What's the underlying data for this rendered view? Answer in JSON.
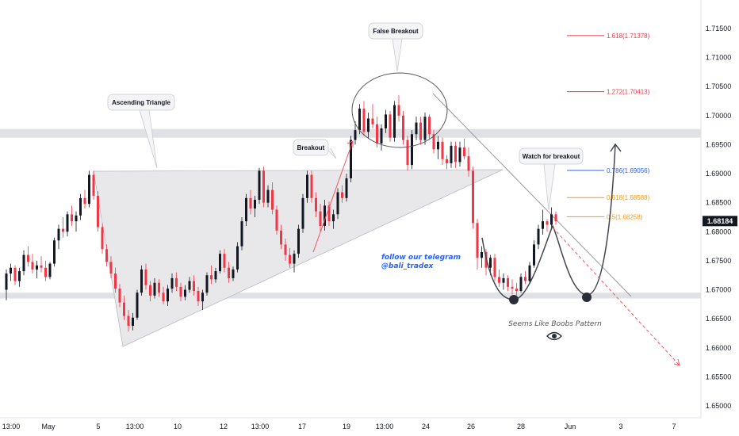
{
  "chart_data": {
    "type": "candlestick",
    "y_axis": {
      "range": [
        1.6455,
        1.7185
      ],
      "ticks": [
        "1.71500",
        "1.71000",
        "1.70500",
        "1.70000",
        "1.69500",
        "1.69000",
        "1.68500",
        "1.68000",
        "1.67500",
        "1.67000",
        "1.66500",
        "1.66000",
        "1.65500",
        "1.65000"
      ],
      "current_price": "1.68184",
      "current_price_color": "#131722"
    },
    "x_axis": {
      "ticks": [
        "13:00",
        "May",
        "5",
        "13:00",
        "10",
        "12",
        "13:00",
        "17",
        "19",
        "13:00",
        "24",
        "26",
        "28",
        "Jun",
        "3",
        "7"
      ]
    },
    "colors": {
      "up": "#131722",
      "down": "#f23645",
      "zone": "#d8dade",
      "triangle": "#e8e8ea",
      "fib_red": "#f23645",
      "fib_blue": "#2962ff",
      "fib_orange": "#ff9800"
    },
    "support_zone": [
      1.6685,
      1.6695
    ],
    "resistance_zone": [
      1.6962,
      1.6977
    ],
    "fibonacci": [
      {
        "label": "1.618(1.71378)",
        "value": 1.71378,
        "color": "#f23645"
      },
      {
        "label": "1.272(1.70413)",
        "value": 1.70413,
        "color": "#f23645"
      },
      {
        "label": "0.786(1.69056)",
        "value": 1.69056,
        "color": "#2962ff"
      },
      {
        "label": "0.618(1.68588)",
        "value": 1.68588,
        "color": "#ff9800"
      },
      {
        "label": "0.5(1.68258)",
        "value": 1.68258,
        "color": "#ff9800"
      }
    ],
    "annotations": {
      "ascending_triangle": "Ascending Triangle",
      "false_breakout": "False Breakout",
      "breakout": "Breakout",
      "watch_for_breakout": "Watch for breakout",
      "telegram_line1": "follow our telegram",
      "telegram_line2": "@bali_tradex",
      "pattern": "Seems Like Boobs Pattern"
    },
    "candles": [
      [
        1.67,
        1.6735,
        1.6682,
        1.6728
      ],
      [
        1.6728,
        1.6745,
        1.6715,
        1.6738
      ],
      [
        1.6738,
        1.6742,
        1.6708,
        1.6715
      ],
      [
        1.6715,
        1.6738,
        1.6705,
        1.6732
      ],
      [
        1.6732,
        1.6768,
        1.6725,
        1.676
      ],
      [
        1.676,
        1.6775,
        1.674,
        1.6748
      ],
      [
        1.6748,
        1.6762,
        1.6728,
        1.6735
      ],
      [
        1.6735,
        1.675,
        1.672,
        1.6742
      ],
      [
        1.6742,
        1.6758,
        1.673,
        1.6738
      ],
      [
        1.6738,
        1.675,
        1.6715,
        1.6722
      ],
      [
        1.6722,
        1.6748,
        1.6718,
        1.6745
      ],
      [
        1.6745,
        1.679,
        1.674,
        1.6785
      ],
      [
        1.6785,
        1.6812,
        1.677,
        1.6805
      ],
      [
        1.6805,
        1.6825,
        1.679,
        1.68
      ],
      [
        1.68,
        1.6835,
        1.6792,
        1.683
      ],
      [
        1.683,
        1.6845,
        1.681,
        1.6818
      ],
      [
        1.6818,
        1.6835,
        1.68,
        1.6828
      ],
      [
        1.6828,
        1.6865,
        1.682,
        1.6858
      ],
      [
        1.6858,
        1.6872,
        1.684,
        1.6848
      ],
      [
        1.6848,
        1.6905,
        1.6842,
        1.6898
      ],
      [
        1.6898,
        1.6905,
        1.6855,
        1.6862
      ],
      [
        1.6862,
        1.687,
        1.68,
        1.6808
      ],
      [
        1.6808,
        1.6815,
        1.6762,
        1.677
      ],
      [
        1.677,
        1.6778,
        1.674,
        1.6748
      ],
      [
        1.6748,
        1.6758,
        1.672,
        1.6728
      ],
      [
        1.6728,
        1.6738,
        1.6695,
        1.6702
      ],
      [
        1.6702,
        1.671,
        1.667,
        1.6678
      ],
      [
        1.6678,
        1.669,
        1.6648,
        1.6655
      ],
      [
        1.6655,
        1.6665,
        1.6628,
        1.6638
      ],
      [
        1.6638,
        1.666,
        1.663,
        1.6652
      ],
      [
        1.6652,
        1.67,
        1.6648,
        1.6695
      ],
      [
        1.6695,
        1.6742,
        1.669,
        1.6735
      ],
      [
        1.6735,
        1.6745,
        1.67,
        1.6708
      ],
      [
        1.6708,
        1.6715,
        1.668,
        1.669
      ],
      [
        1.669,
        1.672,
        1.6685,
        1.6712
      ],
      [
        1.6712,
        1.6718,
        1.6688,
        1.6695
      ],
      [
        1.6695,
        1.6705,
        1.6675,
        1.668
      ],
      [
        1.668,
        1.6708,
        1.6672,
        1.6702
      ],
      [
        1.6702,
        1.6728,
        1.6695,
        1.672
      ],
      [
        1.672,
        1.673,
        1.6698,
        1.6705
      ],
      [
        1.6705,
        1.6712,
        1.668,
        1.6688
      ],
      [
        1.6688,
        1.6708,
        1.6682,
        1.67
      ],
      [
        1.67,
        1.6722,
        1.6695,
        1.6715
      ],
      [
        1.6715,
        1.6725,
        1.669,
        1.6698
      ],
      [
        1.6698,
        1.6705,
        1.6672,
        1.668
      ],
      [
        1.668,
        1.67,
        1.6665,
        1.6695
      ],
      [
        1.6695,
        1.673,
        1.669,
        1.6725
      ],
      [
        1.6725,
        1.6742,
        1.671,
        1.6718
      ],
      [
        1.6718,
        1.6738,
        1.6712,
        1.6732
      ],
      [
        1.6732,
        1.6768,
        1.6728,
        1.6762
      ],
      [
        1.6762,
        1.677,
        1.673,
        1.6738
      ],
      [
        1.6738,
        1.6748,
        1.6712,
        1.672
      ],
      [
        1.672,
        1.674,
        1.6715,
        1.6735
      ],
      [
        1.6735,
        1.6782,
        1.673,
        1.6775
      ],
      [
        1.6775,
        1.6825,
        1.6768,
        1.6818
      ],
      [
        1.6818,
        1.6865,
        1.681,
        1.6858
      ],
      [
        1.6858,
        1.6872,
        1.683,
        1.684
      ],
      [
        1.684,
        1.6862,
        1.6825,
        1.6855
      ],
      [
        1.6855,
        1.691,
        1.6848,
        1.6905
      ],
      [
        1.6905,
        1.6912,
        1.6842,
        1.685
      ],
      [
        1.685,
        1.688,
        1.6842,
        1.6872
      ],
      [
        1.6872,
        1.6885,
        1.683,
        1.6838
      ],
      [
        1.6838,
        1.6845,
        1.6795,
        1.6802
      ],
      [
        1.6802,
        1.6812,
        1.677,
        1.6778
      ],
      [
        1.6778,
        1.6788,
        1.675,
        1.676
      ],
      [
        1.676,
        1.6772,
        1.6738,
        1.6745
      ],
      [
        1.6745,
        1.6768,
        1.673,
        1.6762
      ],
      [
        1.6762,
        1.6812,
        1.6755,
        1.6805
      ],
      [
        1.6805,
        1.6865,
        1.6798,
        1.6858
      ],
      [
        1.6858,
        1.6905,
        1.685,
        1.6898
      ],
      [
        1.6898,
        1.6905,
        1.685,
        1.6858
      ],
      [
        1.6858,
        1.6868,
        1.6825,
        1.6835
      ],
      [
        1.6835,
        1.6848,
        1.68,
        1.681
      ],
      [
        1.681,
        1.6855,
        1.6802,
        1.6845
      ],
      [
        1.6845,
        1.6852,
        1.681,
        1.6818
      ],
      [
        1.6818,
        1.6838,
        1.6805,
        1.683
      ],
      [
        1.683,
        1.6875,
        1.6822,
        1.6868
      ],
      [
        1.6868,
        1.688,
        1.685,
        1.6858
      ],
      [
        1.6858,
        1.69,
        1.6852,
        1.6892
      ],
      [
        1.6892,
        1.6965,
        1.6885,
        1.6958
      ],
      [
        1.6958,
        1.699,
        1.695,
        1.6975
      ],
      [
        1.6975,
        1.702,
        1.6968,
        1.7012
      ],
      [
        1.7012,
        1.7025,
        1.6965,
        1.6972
      ],
      [
        1.6972,
        1.7005,
        1.696,
        1.6995
      ],
      [
        1.6995,
        1.702,
        1.6978,
        1.6985
      ],
      [
        1.6985,
        1.6998,
        1.6945,
        1.6952
      ],
      [
        1.6952,
        1.6985,
        1.694,
        1.6978
      ],
      [
        1.6978,
        1.701,
        1.697,
        1.7002
      ],
      [
        1.7002,
        1.7008,
        1.6955,
        1.6962
      ],
      [
        1.6962,
        1.7025,
        1.6955,
        1.7018
      ],
      [
        1.7018,
        1.7035,
        1.699,
        1.7
      ],
      [
        1.7,
        1.7008,
        1.695,
        1.6958
      ],
      [
        1.6958,
        1.6965,
        1.6905,
        1.6915
      ],
      [
        1.6915,
        1.6975,
        1.6908,
        1.6968
      ],
      [
        1.6968,
        1.6998,
        1.6958,
        1.6988
      ],
      [
        1.6988,
        1.6998,
        1.695,
        1.6958
      ],
      [
        1.6958,
        1.7005,
        1.695,
        1.6998
      ],
      [
        1.6998,
        1.7002,
        1.696,
        1.6968
      ],
      [
        1.6968,
        1.6975,
        1.6935,
        1.6942
      ],
      [
        1.6942,
        1.6965,
        1.6925,
        1.6955
      ],
      [
        1.6955,
        1.6962,
        1.6915,
        1.6925
      ],
      [
        1.6925,
        1.6932,
        1.6908,
        1.6918
      ],
      [
        1.6918,
        1.6955,
        1.691,
        1.6948
      ],
      [
        1.6948,
        1.6955,
        1.691,
        1.692
      ],
      [
        1.692,
        1.6955,
        1.6912,
        1.6945
      ],
      [
        1.6945,
        1.696,
        1.6925,
        1.693
      ],
      [
        1.693,
        1.6945,
        1.6895,
        1.6905
      ],
      [
        1.6905,
        1.6912,
        1.6805,
        1.6815
      ],
      [
        1.6815,
        1.6822,
        1.6735,
        1.6755
      ],
      [
        1.6755,
        1.6775,
        1.6738,
        1.6765
      ],
      [
        1.6765,
        1.677,
        1.6725,
        1.6738
      ],
      [
        1.6738,
        1.676,
        1.6725,
        1.6755
      ],
      [
        1.6755,
        1.6762,
        1.6715,
        1.6722
      ],
      [
        1.6722,
        1.6735,
        1.6705,
        1.6712
      ],
      [
        1.6712,
        1.6728,
        1.67,
        1.672
      ],
      [
        1.672,
        1.6725,
        1.6698,
        1.6705
      ],
      [
        1.6705,
        1.6718,
        1.6692,
        1.6702
      ],
      [
        1.6702,
        1.6712,
        1.669,
        1.6698
      ],
      [
        1.6698,
        1.6728,
        1.6695,
        1.6722
      ],
      [
        1.6722,
        1.6732,
        1.671,
        1.6715
      ],
      [
        1.6715,
        1.6748,
        1.6712,
        1.6742
      ],
      [
        1.6742,
        1.6785,
        1.6738,
        1.6778
      ],
      [
        1.6778,
        1.6812,
        1.677,
        1.6805
      ],
      [
        1.6805,
        1.6838,
        1.6795,
        1.6818
      ],
      [
        1.6818,
        1.6822,
        1.68,
        1.6812
      ],
      [
        1.6812,
        1.6842,
        1.6805,
        1.683
      ],
      [
        1.683,
        1.6835,
        1.6812,
        1.6818
      ]
    ]
  }
}
